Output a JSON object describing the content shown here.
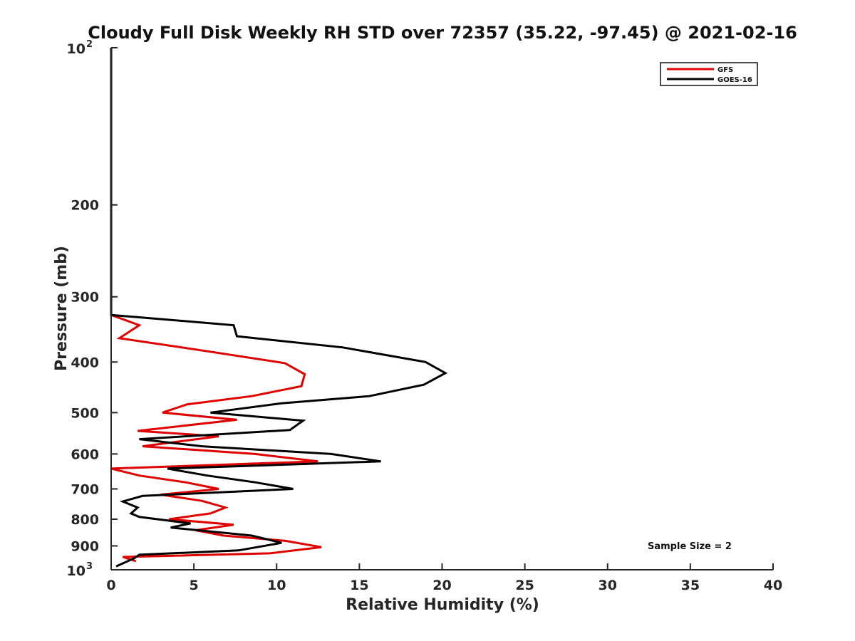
{
  "chart_data": {
    "type": "line",
    "title": "Cloudy Full Disk Weekly RH STD over 72357 (35.22, -97.45) @ 2021-02-16",
    "xlabel": "Relative Humidity (%)",
    "ylabel": "Pressure (mb)",
    "xlim": [
      0,
      40
    ],
    "ylim": [
      100,
      1000
    ],
    "yscale": "log",
    "y_reversed": true,
    "x_ticks": [
      0,
      5,
      10,
      15,
      20,
      25,
      30,
      35,
      40
    ],
    "y_ticks": [
      {
        "value": 100,
        "label": "10",
        "sup": "2"
      },
      {
        "value": 200,
        "label": "200"
      },
      {
        "value": 300,
        "label": "300"
      },
      {
        "value": 400,
        "label": "400"
      },
      {
        "value": 500,
        "label": "500"
      },
      {
        "value": 600,
        "label": "600"
      },
      {
        "value": 700,
        "label": "700"
      },
      {
        "value": 800,
        "label": "800"
      },
      {
        "value": 900,
        "label": "900"
      },
      {
        "value": 1000,
        "label": "10",
        "sup": "3"
      }
    ],
    "grid": false,
    "legend_position": "top-right",
    "annotation": "Sample Size = 2",
    "series": [
      {
        "name": "GFS",
        "color": "#e00000",
        "points": [
          [
            0,
            100
          ],
          [
            0,
            150
          ],
          [
            0,
            200
          ],
          [
            0,
            250
          ],
          [
            0,
            300
          ],
          [
            0,
            325
          ],
          [
            1.7,
            340
          ],
          [
            0.5,
            360
          ],
          [
            5,
            378
          ],
          [
            10.5,
            402
          ],
          [
            11.7,
            422
          ],
          [
            11.5,
            445
          ],
          [
            8.5,
            465
          ],
          [
            4.6,
            482
          ],
          [
            3.1,
            500
          ],
          [
            7.6,
            516
          ],
          [
            1.6,
            542
          ],
          [
            6.5,
            555
          ],
          [
            1.9,
            580
          ],
          [
            8.7,
            600
          ],
          [
            12.5,
            620
          ],
          [
            0,
            640
          ],
          [
            1.7,
            660
          ],
          [
            4.5,
            680
          ],
          [
            6.5,
            700
          ],
          [
            3,
            718
          ],
          [
            5.5,
            738
          ],
          [
            6.9,
            760
          ],
          [
            6,
            780
          ],
          [
            3.5,
            800
          ],
          [
            7.4,
            820
          ],
          [
            5.1,
            840
          ],
          [
            6.8,
            860
          ],
          [
            10.5,
            880
          ],
          [
            12.7,
            905
          ],
          [
            9.6,
            930
          ],
          [
            0.7,
            945
          ],
          [
            1.5,
            963
          ]
        ]
      },
      {
        "name": "GOES-16",
        "color": "#000000",
        "points": [
          [
            0,
            100
          ],
          [
            0,
            150
          ],
          [
            0,
            200
          ],
          [
            0,
            250
          ],
          [
            0,
            300
          ],
          [
            0,
            325
          ],
          [
            7.4,
            340
          ],
          [
            7.6,
            357
          ],
          [
            14,
            375
          ],
          [
            19,
            400
          ],
          [
            20.2,
            420
          ],
          [
            18.9,
            442
          ],
          [
            15.6,
            465
          ],
          [
            10.3,
            480
          ],
          [
            6,
            500
          ],
          [
            11.6,
            518
          ],
          [
            10.8,
            540
          ],
          [
            1.7,
            562
          ],
          [
            5.5,
            580
          ],
          [
            13.3,
            600
          ],
          [
            16.3,
            620
          ],
          [
            3.4,
            640
          ],
          [
            5.8,
            660
          ],
          [
            8.7,
            680
          ],
          [
            11,
            700
          ],
          [
            1.9,
            722
          ],
          [
            0.7,
            740
          ],
          [
            1.6,
            760
          ],
          [
            1.2,
            780
          ],
          [
            1.7,
            792
          ],
          [
            4.8,
            815
          ],
          [
            3.6,
            830
          ],
          [
            8.5,
            860
          ],
          [
            10.3,
            888
          ],
          [
            7.7,
            918
          ],
          [
            1.7,
            936
          ],
          [
            1.4,
            950
          ],
          [
            0.3,
            985
          ]
        ]
      }
    ]
  }
}
